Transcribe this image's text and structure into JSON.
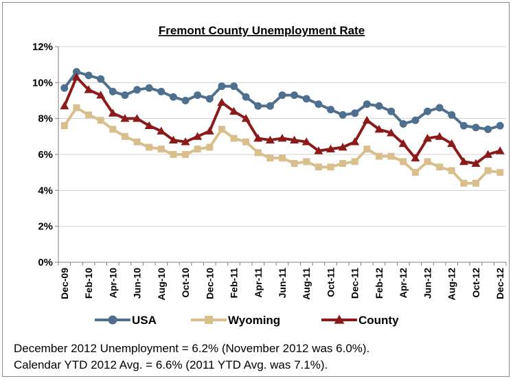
{
  "chart_data": {
    "type": "line",
    "title": "Fremont County Unemployment Rate",
    "xlabel": "",
    "ylabel": "",
    "ylim": [
      0,
      12
    ],
    "yticks": [
      "0%",
      "2%",
      "4%",
      "6%",
      "8%",
      "10%",
      "12%"
    ],
    "grid": true,
    "legend_position": "bottom",
    "x": [
      "Dec-09",
      "Jan-10",
      "Feb-10",
      "Mar-10",
      "Apr-10",
      "May-10",
      "Jun-10",
      "Jul-10",
      "Aug-10",
      "Sep-10",
      "Oct-10",
      "Nov-10",
      "Dec-10",
      "Jan-11",
      "Feb-11",
      "Mar-11",
      "Apr-11",
      "May-11",
      "Jun-11",
      "Jul-11",
      "Aug-11",
      "Sep-11",
      "Oct-11",
      "Nov-11",
      "Dec-11",
      "Jan-12",
      "Feb-12",
      "Mar-12",
      "Apr-12",
      "May-12",
      "Jun-12",
      "Jul-12",
      "Aug-12",
      "Sep-12",
      "Oct-12",
      "Nov-12",
      "Dec-12"
    ],
    "x_tick_labels": [
      "Dec-09",
      "Feb-10",
      "Apr-10",
      "Jun-10",
      "Aug-10",
      "Oct-10",
      "Dec-10",
      "Feb-11",
      "Apr-11",
      "Jun-11",
      "Aug-11",
      "Oct-11",
      "Dec-11",
      "Feb-12",
      "Apr-12",
      "Jun-12",
      "Aug-12",
      "Oct-12",
      "Dec-12"
    ],
    "series": [
      {
        "name": "USA",
        "color": "#4f6f8f",
        "marker": "circle",
        "values": [
          9.7,
          10.6,
          10.4,
          10.2,
          9.5,
          9.3,
          9.6,
          9.7,
          9.5,
          9.2,
          9.0,
          9.3,
          9.1,
          9.8,
          9.8,
          9.2,
          8.7,
          8.7,
          9.3,
          9.3,
          9.1,
          8.8,
          8.5,
          8.2,
          8.3,
          8.8,
          8.7,
          8.4,
          7.7,
          7.9,
          8.4,
          8.6,
          8.2,
          7.6,
          7.5,
          7.4,
          7.6
        ]
      },
      {
        "name": "Wyoming",
        "color": "#d9bf8c",
        "marker": "square",
        "values": [
          7.6,
          8.6,
          8.2,
          7.9,
          7.4,
          7.0,
          6.7,
          6.4,
          6.3,
          6.0,
          6.0,
          6.3,
          6.4,
          7.4,
          6.9,
          6.7,
          6.1,
          5.8,
          5.8,
          5.5,
          5.6,
          5.3,
          5.3,
          5.5,
          5.6,
          6.3,
          5.9,
          5.9,
          5.6,
          5.0,
          5.6,
          5.3,
          5.1,
          4.4,
          4.4,
          5.1,
          5.0
        ]
      },
      {
        "name": "County",
        "color": "#8b1a1a",
        "marker": "triangle",
        "values": [
          8.7,
          10.3,
          9.6,
          9.3,
          8.3,
          8.0,
          8.0,
          7.6,
          7.3,
          6.8,
          6.7,
          7.0,
          7.3,
          8.9,
          8.4,
          8.0,
          6.9,
          6.8,
          6.9,
          6.8,
          6.7,
          6.2,
          6.3,
          6.4,
          6.7,
          7.9,
          7.4,
          7.2,
          6.6,
          5.8,
          6.9,
          7.0,
          6.6,
          5.6,
          5.5,
          6.0,
          6.2
        ]
      }
    ]
  },
  "notes": {
    "line1": "December 2012 Unemployment = 6.2% (November 2012 was 6.0%).",
    "line2": "Calendar YTD 2012 Avg. = 6.6% (2011 YTD Avg. was 7.1%)."
  }
}
